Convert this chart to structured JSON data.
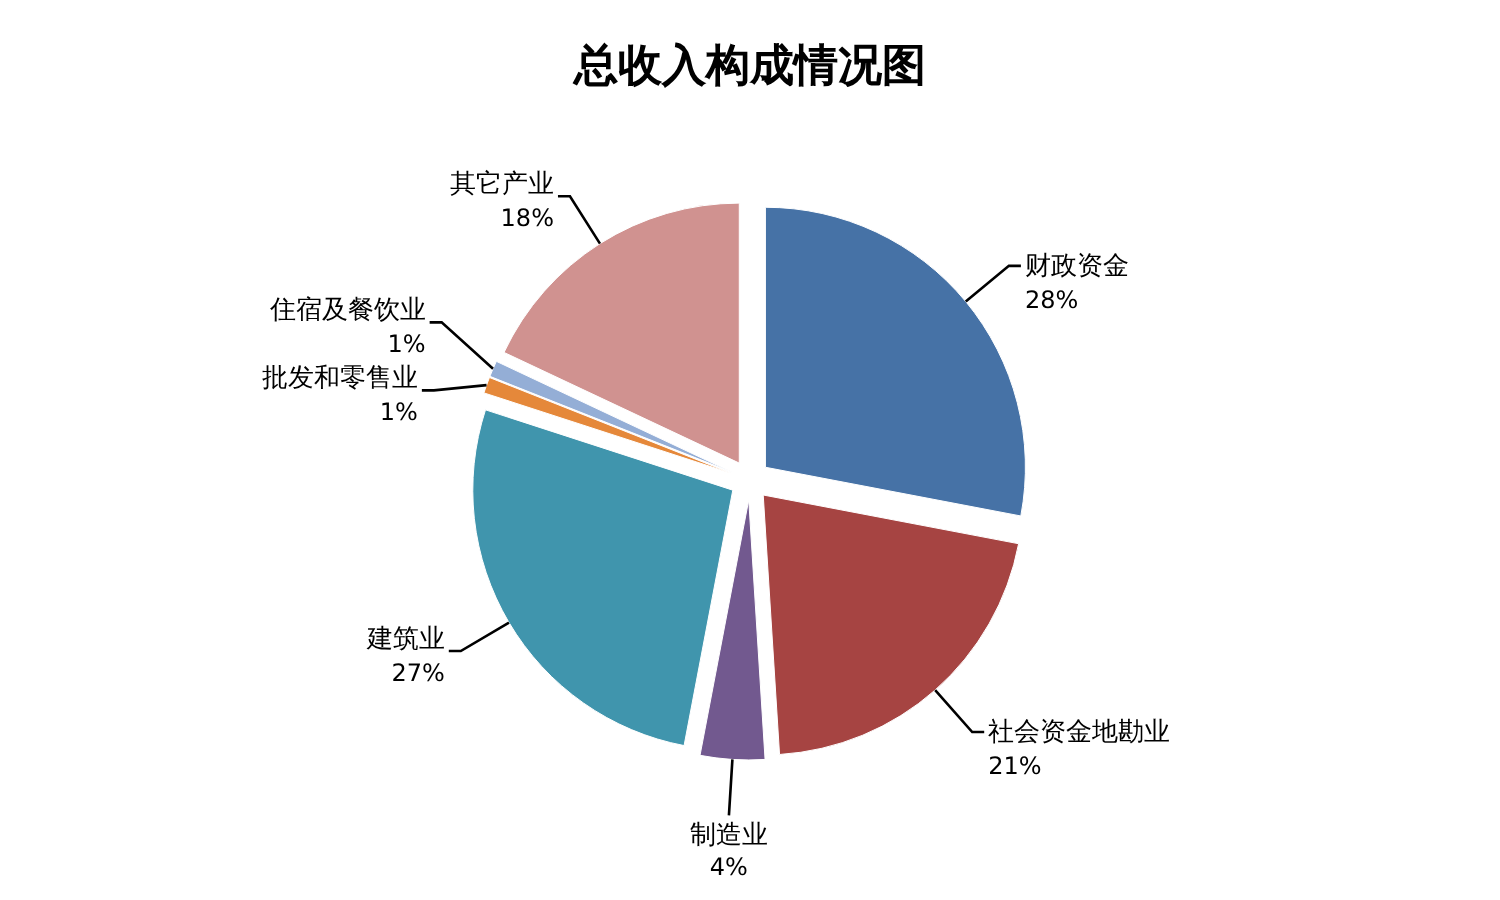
{
  "chart_data": {
    "type": "pie",
    "title": "总收入构成情况图",
    "categories": [
      "财政资金",
      "社会资金地勘业",
      "制造业",
      "建筑业",
      "批发和零售业",
      "住宿及餐饮业",
      "其它产业"
    ],
    "values": [
      28,
      21,
      4,
      27,
      1,
      1,
      18
    ],
    "value_labels": [
      "28%",
      "21%",
      "4%",
      "27%",
      "1%",
      "1%",
      "18%"
    ],
    "colors": [
      "#4672a6",
      "#a64442",
      "#72598f",
      "#4095ad",
      "#e5883a",
      "#94aed6",
      "#d09290"
    ]
  }
}
